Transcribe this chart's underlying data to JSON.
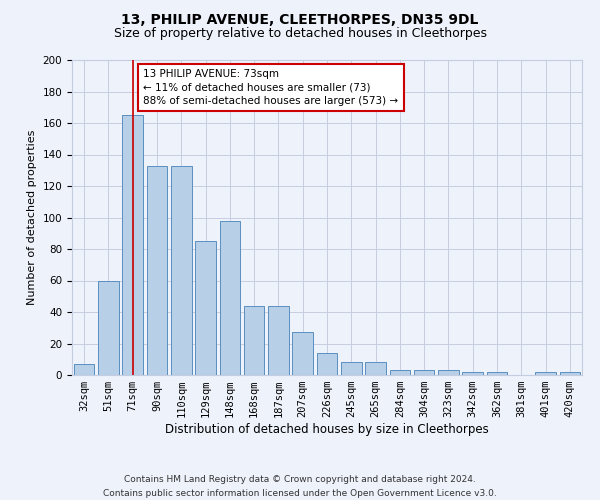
{
  "title": "13, PHILIP AVENUE, CLEETHORPES, DN35 9DL",
  "subtitle": "Size of property relative to detached houses in Cleethorpes",
  "xlabel": "Distribution of detached houses by size in Cleethorpes",
  "ylabel": "Number of detached properties",
  "categories": [
    "32sqm",
    "51sqm",
    "71sqm",
    "90sqm",
    "110sqm",
    "129sqm",
    "148sqm",
    "168sqm",
    "187sqm",
    "207sqm",
    "226sqm",
    "245sqm",
    "265sqm",
    "284sqm",
    "304sqm",
    "323sqm",
    "342sqm",
    "362sqm",
    "381sqm",
    "401sqm",
    "420sqm"
  ],
  "values": [
    7,
    60,
    165,
    133,
    133,
    85,
    98,
    44,
    44,
    27,
    14,
    8,
    8,
    3,
    3,
    3,
    2,
    2,
    0,
    2,
    2
  ],
  "bar_color": "#b8cfe8",
  "bar_edge_color": "#5a8fc0",
  "vline_x": 2,
  "vline_color": "#cc0000",
  "annotation_text": "13 PHILIP AVENUE: 73sqm\n← 11% of detached houses are smaller (73)\n88% of semi-detached houses are larger (573) →",
  "annotation_box_color": "#ffffff",
  "annotation_box_edge": "#cc0000",
  "footer": "Contains HM Land Registry data © Crown copyright and database right 2024.\nContains public sector information licensed under the Open Government Licence v3.0.",
  "bg_color": "#eef2fb",
  "grid_color": "#c5cde0",
  "title_fontsize": 10,
  "subtitle_fontsize": 9,
  "ylabel_fontsize": 8,
  "xlabel_fontsize": 8.5,
  "tick_fontsize": 7.5,
  "footer_fontsize": 6.5,
  "ylim": [
    0,
    200
  ],
  "yticks": [
    0,
    20,
    40,
    60,
    80,
    100,
    120,
    140,
    160,
    180,
    200
  ]
}
